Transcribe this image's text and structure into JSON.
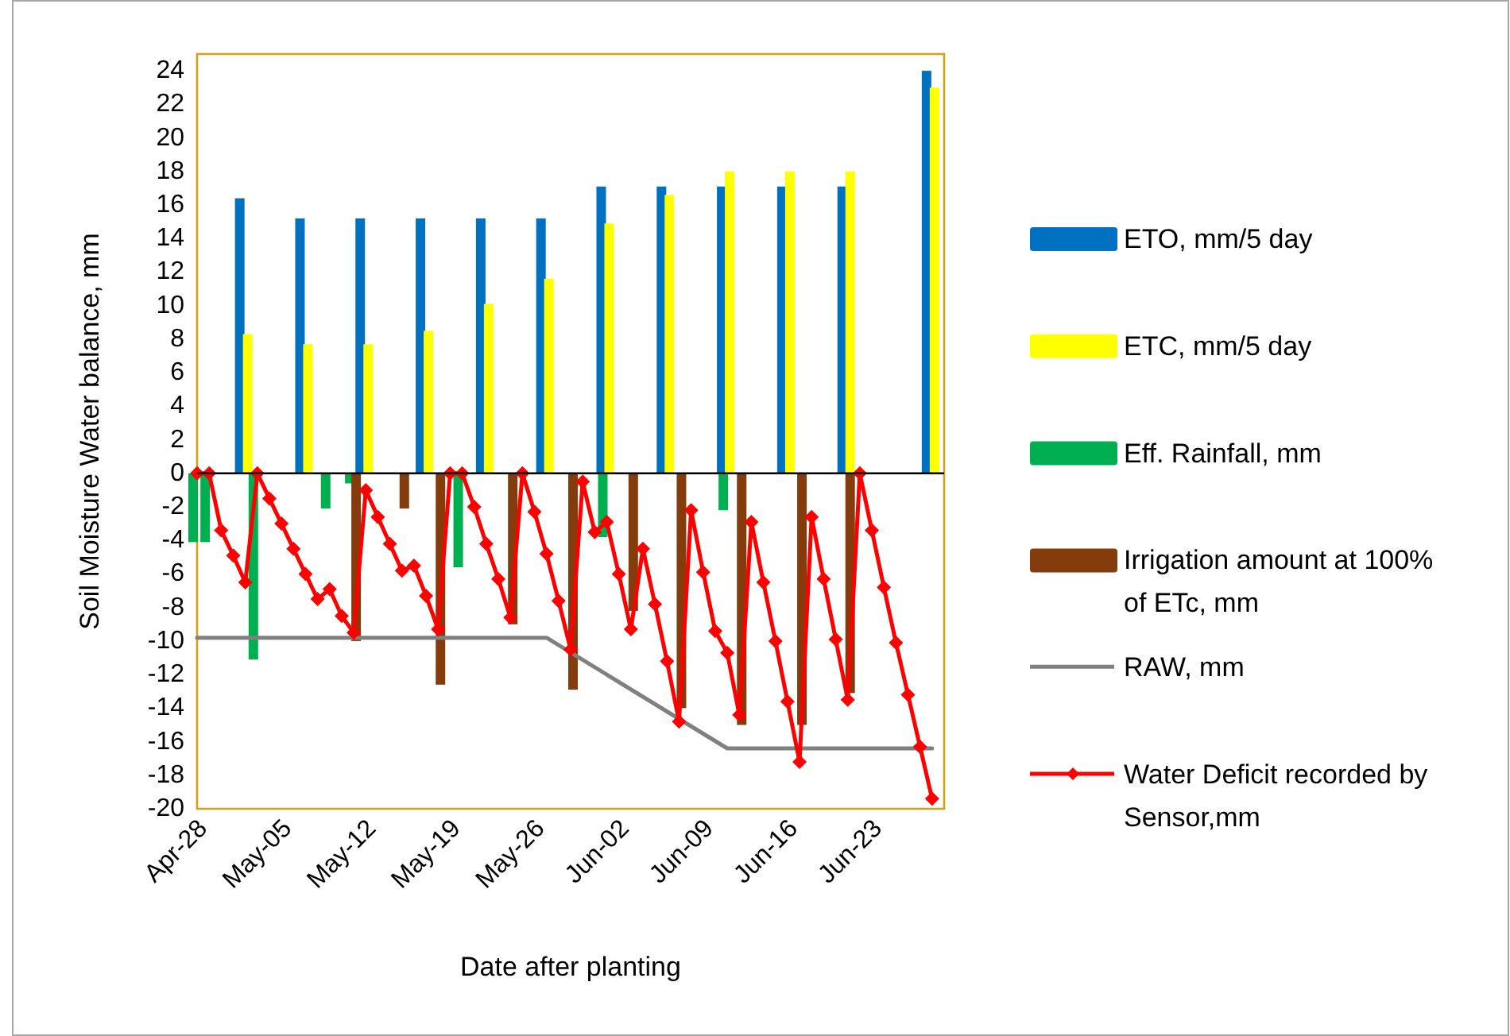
{
  "chart_data": {
    "type": "bar",
    "xlabel": "Date after planting",
    "ylabel": "Soil Moisture Water balance, mm",
    "x": [
      "--04-28",
      "--04-29",
      "--04-30",
      "--05-01",
      "--05-02",
      "--05-03",
      "--05-04",
      "--05-05",
      "--05-06",
      "--05-07",
      "--05-08",
      "--05-09",
      "--05-10",
      "--05-11",
      "--05-12",
      "--05-13",
      "--05-14",
      "--05-15",
      "--05-16",
      "--05-17",
      "--05-18",
      "--05-19",
      "--05-20",
      "--05-21",
      "--05-22",
      "--05-23",
      "--05-24",
      "--05-25",
      "--05-26",
      "--05-27",
      "--05-28",
      "--05-29",
      "--05-30",
      "--05-31",
      "--06-01",
      "--06-02",
      "--06-03",
      "--06-04",
      "--06-05",
      "--06-06",
      "--06-07",
      "--06-08",
      "--06-09",
      "--06-10",
      "--06-11",
      "--06-12",
      "--06-13",
      "--06-14",
      "--06-15",
      "--06-16",
      "--06-17",
      "--06-18",
      "--06-19",
      "--06-20",
      "--06-21",
      "--06-22",
      "--06-23",
      "--06-24",
      "--06-25",
      "--06-26",
      "--06-27",
      "--06-28"
    ],
    "series": [
      {
        "name": "ETO, mm/5 day",
        "color": "#0070c0",
        "x": [
          "--05-02",
          "--05-07",
          "--05-12",
          "--05-17",
          "--05-22",
          "--05-27",
          "--06-01",
          "--06-06",
          "--06-11",
          "--06-16",
          "--06-21",
          "--06-28"
        ],
        "values": [
          16.4,
          15.2,
          15.2,
          15.2,
          15.2,
          15.2,
          17.1,
          17.1,
          17.1,
          17.1,
          17.1,
          24.0
        ]
      },
      {
        "name": "ETC, mm/5 day",
        "color": "#ffff00",
        "x": [
          "--05-02",
          "--05-07",
          "--05-12",
          "--05-17",
          "--05-22",
          "--05-27",
          "--06-01",
          "--06-06",
          "--06-11",
          "--06-16",
          "--06-21",
          "--06-28"
        ],
        "values": [
          8.3,
          7.7,
          7.7,
          8.5,
          10.1,
          11.6,
          14.9,
          16.6,
          18.0,
          18.0,
          18.0,
          23.0
        ]
      },
      {
        "name": "Eff. Rainfall, mm",
        "color": "#00b050",
        "x": [
          "--04-28",
          "--04-29",
          "--05-03",
          "--05-09",
          "--05-11",
          "--05-20",
          "--06-01",
          "--06-11"
        ],
        "values": [
          -4.1,
          -4.1,
          -11.1,
          -2.1,
          -0.6,
          -5.6,
          -3.8,
          -2.2
        ]
      },
      {
        "name": "Irrigation amount at 100% of ETc, mm",
        "color": "#843c0c",
        "x": [
          "--05-11",
          "--05-15",
          "--05-18",
          "--05-24",
          "--05-29",
          "--06-03",
          "--06-07",
          "--06-12",
          "--06-17",
          "--06-21"
        ],
        "values": [
          -10.0,
          -2.1,
          -12.6,
          -9.0,
          -12.9,
          -8.2,
          -14.0,
          -15.0,
          -15.0,
          -13.1
        ]
      },
      {
        "name": "RAW, mm",
        "type": "line",
        "color": "#808080",
        "marker": "none",
        "x": [
          "--04-28",
          "--05-27",
          "--06-11",
          "--06-28"
        ],
        "values": [
          -9.8,
          -9.8,
          -16.4,
          -16.4
        ]
      },
      {
        "name": "Water Deficit recorded by Sensor,mm",
        "type": "line",
        "color": "#ff0000",
        "marker": "diamond",
        "values": [
          0,
          0,
          -3.4,
          -4.9,
          -6.5,
          0,
          -1.5,
          -3.0,
          -4.5,
          -6.0,
          -7.5,
          -6.9,
          -8.5,
          -9.5,
          -1.0,
          -2.6,
          -4.2,
          -5.8,
          -5.5,
          -7.3,
          -9.3,
          0,
          0,
          -2.0,
          -4.2,
          -6.3,
          -8.6,
          0,
          -2.3,
          -4.8,
          -7.6,
          -10.5,
          -0.5,
          -3.5,
          -2.9,
          -6.0,
          -9.3,
          -4.5,
          -7.8,
          -11.2,
          -14.8,
          -2.2,
          -5.9,
          -9.4,
          -10.7,
          -14.4,
          -2.9,
          -6.5,
          -10.0,
          -13.6,
          -17.2,
          -2.6,
          -6.3,
          -9.9,
          -13.5,
          0,
          -3.4,
          -6.8,
          -10.1,
          -13.2,
          -16.3,
          -19.4
        ]
      }
    ],
    "xlim": [
      "--04-28",
      "--06-29"
    ],
    "xticks": [
      {
        "value": "--04-28",
        "label": "Apr-28"
      },
      {
        "value": "--05-05",
        "label": "May-05"
      },
      {
        "value": "--05-12",
        "label": "May-12"
      },
      {
        "value": "--05-19",
        "label": "May-19"
      },
      {
        "value": "--05-26",
        "label": "May-26"
      },
      {
        "value": "--06-02",
        "label": "Jun-02"
      },
      {
        "value": "--06-09",
        "label": "Jun-09"
      },
      {
        "value": "--06-16",
        "label": "Jun-16"
      },
      {
        "value": "--06-23",
        "label": "Jun-23"
      }
    ],
    "ylim": [
      -20,
      25
    ],
    "yticks": [
      -20,
      -18,
      -16,
      -14,
      -12,
      -10,
      -8,
      -6,
      -4,
      -2,
      0,
      2,
      4,
      6,
      8,
      10,
      12,
      14,
      16,
      18,
      20,
      22,
      24
    ],
    "ref_lines": [
      {
        "axis": "y",
        "value": 0,
        "color": "#000000"
      }
    ],
    "legend": "right"
  }
}
